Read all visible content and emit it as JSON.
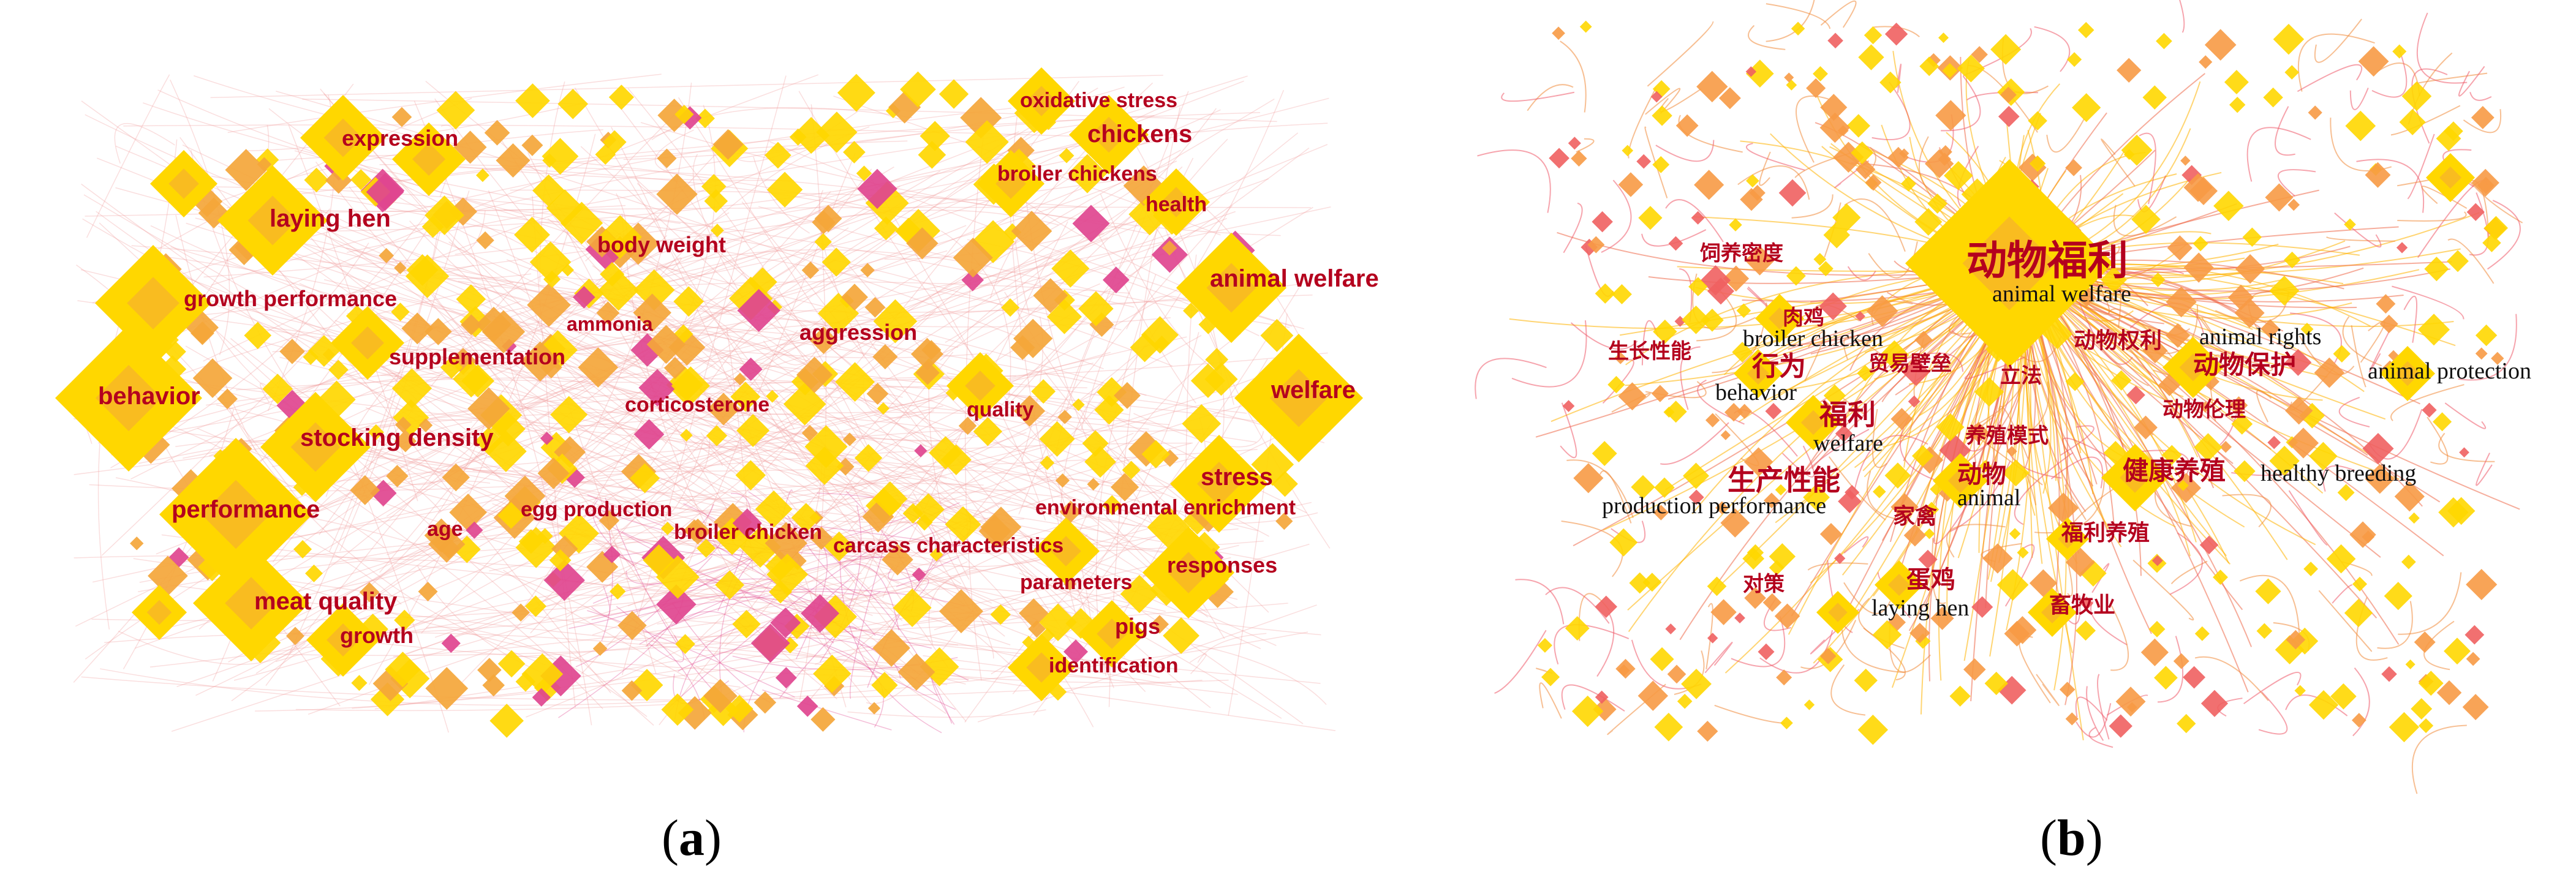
{
  "panel_a": {
    "label": "a",
    "keywords": [
      "oxidative stress",
      "chickens",
      "expression",
      "broiler chickens",
      "health",
      "laying hen",
      "body weight",
      "animal welfare",
      "growth performance",
      "ammonia",
      "aggression",
      "supplementation",
      "behavior",
      "welfare",
      "corticosterone",
      "quality",
      "stocking density",
      "stress",
      "performance",
      "environmental enrichment",
      "age",
      "egg production",
      "broiler chicken",
      "carcass characteristics",
      "parameters",
      "responses",
      "meat quality",
      "pigs",
      "growth",
      "identification"
    ]
  },
  "panel_b": {
    "label": "b",
    "cn_keywords": [
      "动物福利",
      "饲养密度",
      "肉鸡",
      "生长性能",
      "行为",
      "贸易壁垒",
      "立法",
      "动物权利",
      "动物保护",
      "动物伦理",
      "福利",
      "养殖模式",
      "生产性能",
      "动物",
      "健康养殖",
      "家禽",
      "福利养殖",
      "对策",
      "蛋鸡",
      "畜牧业"
    ],
    "en_keywords": [
      "animal welfare",
      "broiler chicken",
      "behavior",
      "animal rights",
      "animal protection",
      "welfare",
      "animal",
      "healthy breeding",
      "production performance",
      "laying hen"
    ]
  },
  "colors": {
    "yellow": "#ffd700",
    "orange": "#f4a63a",
    "pink": "#e0458f",
    "label_red": "#b4001e",
    "edge": "#f2a0a0"
  }
}
